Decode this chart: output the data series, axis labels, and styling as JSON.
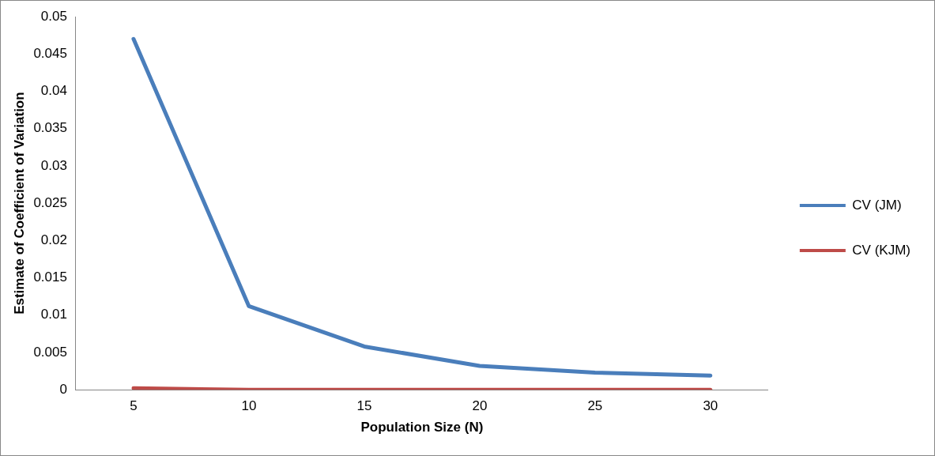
{
  "chart_data": {
    "type": "line",
    "xlabel": "Population Size (N)",
    "ylabel": "Estimate of Coefficient of Variation",
    "categories": [
      "5",
      "10",
      "15",
      "20",
      "25",
      "30"
    ],
    "series": [
      {
        "name": "CV (JM)",
        "color": "#4a7ebb",
        "values": [
          0.047,
          0.0112,
          0.0058,
          0.0032,
          0.0023,
          0.0019
        ]
      },
      {
        "name": "CV (KJM)",
        "color": "#be4b48",
        "values": [
          0.0002,
          0,
          0,
          0,
          0,
          0
        ]
      }
    ],
    "ylim": [
      0,
      0.05
    ],
    "yticks": [
      0,
      0.005,
      0.01,
      0.015,
      0.02,
      0.025,
      0.03,
      0.035,
      0.04,
      0.045,
      0.05
    ],
    "grid": false,
    "legend": "right",
    "marker": "none",
    "line_style": "solid"
  }
}
